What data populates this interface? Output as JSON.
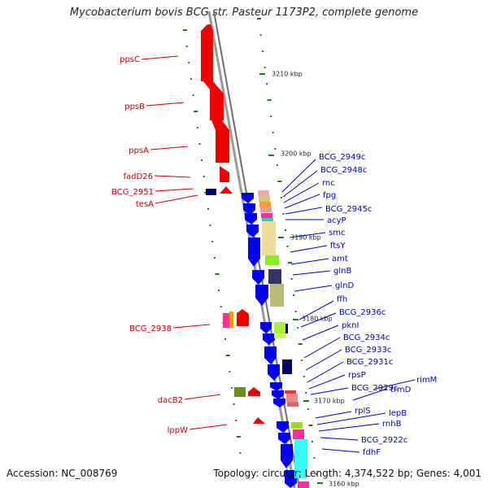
{
  "title": "Mycobacterium bovis BCG str. Pasteur 1173P2, complete genome",
  "footer": {
    "accession": "Accession: NC_008769",
    "summary": "Topology: circular; Length: 4,374,522 bp; Genes: 4,001"
  },
  "colors": {
    "left_label": "#cc0000",
    "right_label": "#0000bb",
    "tick": "#1a7a1a",
    "backbone": "#888888"
  },
  "kbp_ticks": [
    "3210 kbp",
    "3200 kbp",
    "3190 kbp",
    "3180 kbp",
    "3170 kbp",
    "3160 kbp"
  ],
  "genes_left": [
    "ppsC",
    "ppsB",
    "ppsA",
    "fadD26",
    "BCG_2951",
    "tesA",
    "BCG_2938",
    "dacB2",
    "lppW"
  ],
  "genes_right": [
    "BCG_2949c",
    "BCG_2948c",
    "rnc",
    "fpg",
    "BCG_2945c",
    "acyP",
    "smc",
    "ftsY",
    "amt",
    "glnB",
    "glnD",
    "ffh",
    "BCG_2936c",
    "pknI",
    "BCG_2934c",
    "BCG_2933c",
    "BCG_2931c",
    "rpsP",
    "BCG_2929c",
    "rimM",
    "trmD",
    "rplS",
    "lepB",
    "rnhB",
    "BCG_2922c",
    "fdhF"
  ]
}
